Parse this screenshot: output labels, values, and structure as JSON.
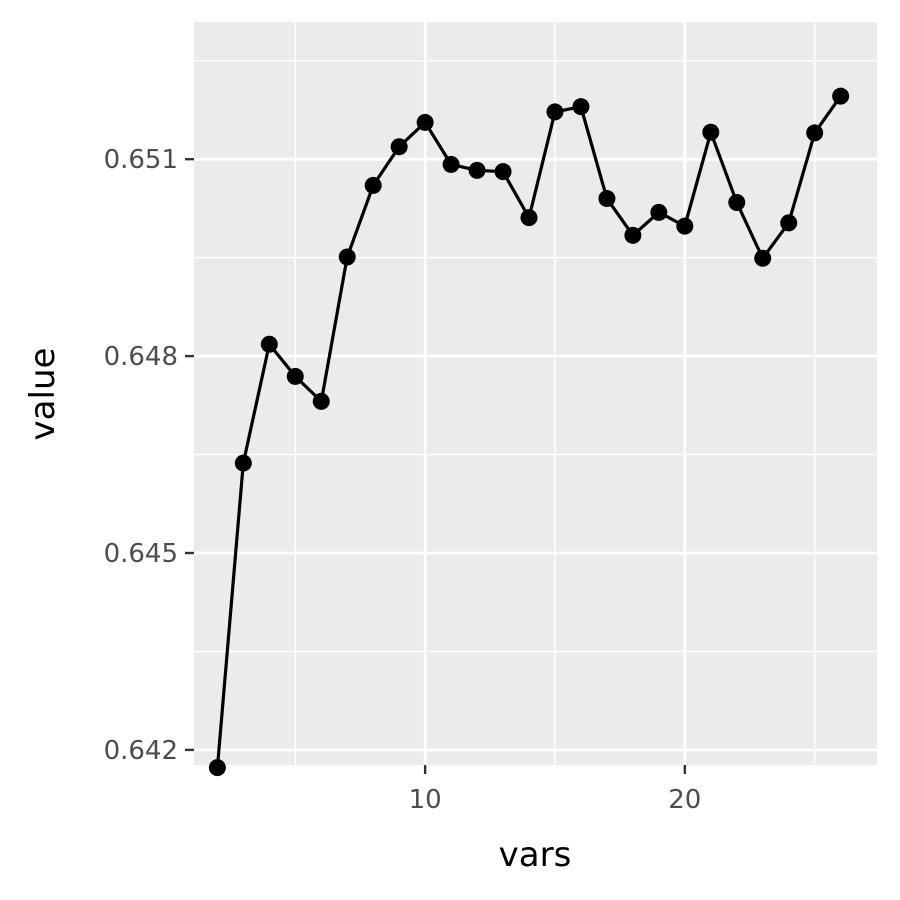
{
  "chart_data": {
    "type": "line",
    "title": "",
    "xlabel": "vars",
    "ylabel": "value",
    "xlim": [
      1.1,
      27.4
    ],
    "ylim": [
      0.64177,
      0.65309
    ],
    "x_ticks": [
      10,
      20
    ],
    "x_tick_labels": [
      "10",
      "20"
    ],
    "x_minor_ticks": [
      5,
      15,
      25
    ],
    "y_ticks": [
      0.642,
      0.645,
      0.648,
      0.651
    ],
    "y_tick_labels": [
      "0.642",
      "0.645",
      "0.648",
      "0.651"
    ],
    "y_minor_ticks": [
      0.6435,
      0.6465,
      0.6495,
      0.6525
    ],
    "grid": true,
    "legend": "none",
    "colors": {
      "panel": "#ebebeb",
      "grid": "#ffffff",
      "line": "#000000",
      "tick_text": "#4d4d4d"
    },
    "series": [
      {
        "x": [
          2,
          3,
          4,
          5,
          6,
          7,
          8,
          9,
          10,
          11,
          12,
          13,
          14,
          15,
          16,
          17,
          18,
          19,
          20,
          21,
          22,
          23,
          24,
          25,
          26
        ],
        "values": [
          0.64173,
          0.64637,
          0.64818,
          0.64769,
          0.64731,
          0.64951,
          0.6506,
          0.65119,
          0.65156,
          0.65092,
          0.65083,
          0.65081,
          0.65011,
          0.65172,
          0.6518,
          0.6504,
          0.64984,
          0.65019,
          0.64998,
          0.65141,
          0.65034,
          0.64949,
          0.65003,
          0.6514,
          0.65196
        ]
      }
    ]
  }
}
